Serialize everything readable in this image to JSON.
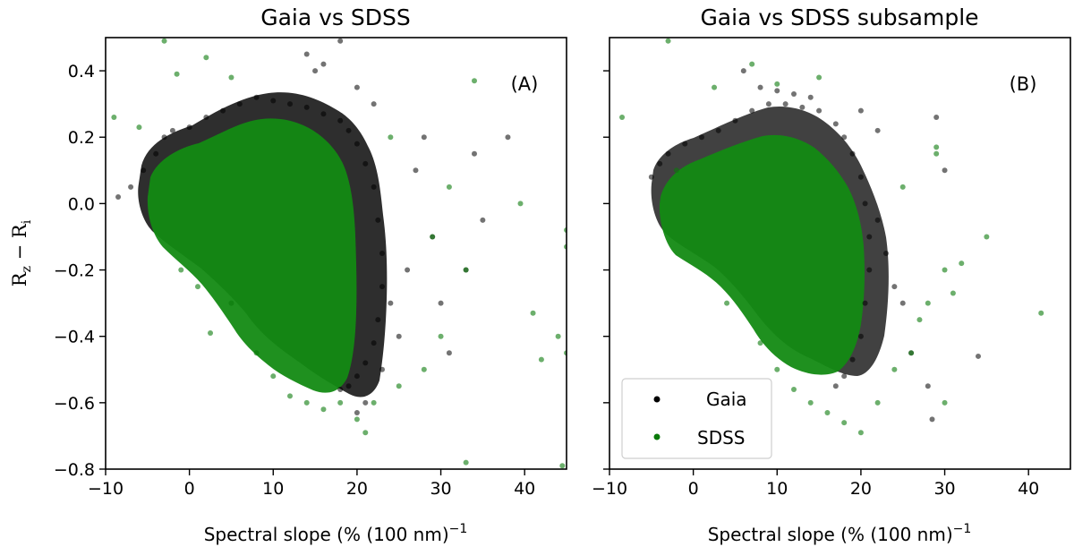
{
  "chart_data": [
    {
      "type": "scatter",
      "title": "Gaia vs SDSS",
      "panel_label": "(A)",
      "xlabel": "Spectral slope (% (100 nm)",
      "xlabel_sup": "−1",
      "xlabel_tail": "",
      "ylabel_main": "R",
      "ylabel_sub1": "z",
      "ylabel_mid": " − R",
      "ylabel_sub2": "i",
      "xlim": [
        -10,
        45
      ],
      "ylim": [
        -0.8,
        0.5
      ],
      "xticks": [
        -10,
        0,
        10,
        20,
        30,
        40
      ],
      "xtick_labels": [
        "−10",
        "0",
        "10",
        "20",
        "30",
        "40"
      ],
      "yticks": [
        -0.8,
        -0.6,
        -0.4,
        -0.2,
        0.0,
        0.2,
        0.4
      ],
      "ytick_labels": [
        "−0.8",
        "−0.6",
        "−0.4",
        "−0.2",
        "0.0",
        "0.2",
        "0.4"
      ],
      "series": [
        {
          "name": "Gaia",
          "color": "#000000",
          "points": [
            [
              -8.5,
              0.02
            ],
            [
              -7,
              0.05
            ],
            [
              -5.5,
              0.1
            ],
            [
              -4,
              0.15
            ],
            [
              -3,
              0.2
            ],
            [
              -2,
              0.22
            ],
            [
              0,
              0.23
            ],
            [
              2,
              0.26
            ],
            [
              4,
              0.28
            ],
            [
              6,
              0.3
            ],
            [
              8,
              0.32
            ],
            [
              10,
              0.31
            ],
            [
              12,
              0.3
            ],
            [
              14,
              0.29
            ],
            [
              16,
              0.27
            ],
            [
              18,
              0.25
            ],
            [
              19,
              0.22
            ],
            [
              20,
              0.18
            ],
            [
              21,
              0.12
            ],
            [
              22,
              0.05
            ],
            [
              22.5,
              -0.05
            ],
            [
              23,
              -0.15
            ],
            [
              23,
              -0.25
            ],
            [
              22.5,
              -0.35
            ],
            [
              22,
              -0.42
            ],
            [
              21,
              -0.48
            ],
            [
              20,
              -0.52
            ],
            [
              19,
              -0.55
            ],
            [
              18,
              -0.56
            ],
            [
              24,
              -0.3
            ],
            [
              25,
              -0.4
            ],
            [
              26,
              -0.2
            ],
            [
              27,
              0.1
            ],
            [
              28,
              0.2
            ],
            [
              29,
              -0.1
            ],
            [
              30,
              -0.3
            ],
            [
              31,
              -0.45
            ],
            [
              33,
              -0.2
            ],
            [
              34,
              0.15
            ],
            [
              35,
              -0.05
            ],
            [
              38,
              0.2
            ],
            [
              15,
              0.4
            ],
            [
              14,
              0.45
            ],
            [
              16,
              0.42
            ],
            [
              18,
              0.49
            ],
            [
              20,
              0.35
            ],
            [
              22,
              0.3
            ],
            [
              21,
              -0.6
            ],
            [
              20,
              -0.63
            ],
            [
              23,
              -0.5
            ]
          ]
        },
        {
          "name": "SDSS",
          "color": "#0a7a0a",
          "points": [
            [
              -9,
              0.26
            ],
            [
              -6,
              0.23
            ],
            [
              -3,
              0.49
            ],
            [
              -1.5,
              0.39
            ],
            [
              2,
              0.44
            ],
            [
              5,
              0.38
            ],
            [
              2.5,
              -0.39
            ],
            [
              1,
              -0.25
            ],
            [
              -1,
              -0.2
            ],
            [
              5,
              -0.3
            ],
            [
              8,
              -0.45
            ],
            [
              10,
              -0.52
            ],
            [
              12,
              -0.58
            ],
            [
              14,
              -0.6
            ],
            [
              16,
              -0.62
            ],
            [
              18,
              -0.6
            ],
            [
              20,
              -0.65
            ],
            [
              21,
              -0.69
            ],
            [
              22,
              -0.6
            ],
            [
              25,
              -0.55
            ],
            [
              28,
              -0.5
            ],
            [
              30,
              -0.4
            ],
            [
              33,
              -0.78
            ],
            [
              34,
              0.37
            ],
            [
              39.5,
              0.0
            ],
            [
              41,
              -0.33
            ],
            [
              42,
              -0.47
            ],
            [
              44,
              -0.4
            ],
            [
              45,
              -0.08
            ],
            [
              45,
              -0.13
            ],
            [
              44.5,
              -0.79
            ],
            [
              45,
              -0.45
            ],
            [
              33,
              -0.2
            ],
            [
              31,
              0.05
            ],
            [
              29,
              -0.1
            ],
            [
              24,
              0.2
            ]
          ]
        }
      ],
      "legend": null
    },
    {
      "type": "scatter",
      "title": "Gaia vs SDSS subsample",
      "panel_label": "(B)",
      "xlabel": "Spectral slope (% (100 nm)",
      "xlabel_sup": "−1",
      "xlim": [
        -10,
        45
      ],
      "ylim": [
        -0.8,
        0.5
      ],
      "xticks": [
        -10,
        0,
        10,
        20,
        30,
        40
      ],
      "xtick_labels": [
        "−10",
        "0",
        "10",
        "20",
        "30",
        "40"
      ],
      "series": [
        {
          "name": "Gaia",
          "color": "#000000",
          "points": [
            [
              -5,
              0.08
            ],
            [
              -4,
              0.12
            ],
            [
              -3,
              0.15
            ],
            [
              -1,
              0.18
            ],
            [
              1,
              0.2
            ],
            [
              3,
              0.22
            ],
            [
              5,
              0.25
            ],
            [
              7,
              0.28
            ],
            [
              9,
              0.3
            ],
            [
              11,
              0.3
            ],
            [
              13,
              0.29
            ],
            [
              15,
              0.28
            ],
            [
              17,
              0.24
            ],
            [
              18,
              0.2
            ],
            [
              19,
              0.15
            ],
            [
              20,
              0.08
            ],
            [
              20.5,
              0.0
            ],
            [
              21,
              -0.1
            ],
            [
              21,
              -0.2
            ],
            [
              20.5,
              -0.3
            ],
            [
              20,
              -0.4
            ],
            [
              19,
              -0.47
            ],
            [
              18,
              -0.52
            ],
            [
              17,
              -0.55
            ],
            [
              22,
              -0.05
            ],
            [
              23,
              -0.15
            ],
            [
              24,
              -0.25
            ],
            [
              25,
              -0.3
            ],
            [
              26,
              -0.45
            ],
            [
              28,
              -0.55
            ],
            [
              28.5,
              -0.65
            ],
            [
              29,
              0.26
            ],
            [
              30,
              0.1
            ],
            [
              34,
              -0.46
            ],
            [
              12,
              0.33
            ],
            [
              10,
              0.34
            ],
            [
              14,
              0.32
            ],
            [
              6,
              0.4
            ],
            [
              8,
              0.35
            ],
            [
              20,
              0.28
            ],
            [
              22,
              0.22
            ]
          ]
        },
        {
          "name": "SDSS",
          "color": "#0a7a0a",
          "points": [
            [
              -8.5,
              0.26
            ],
            [
              -3,
              0.49
            ],
            [
              7,
              0.42
            ],
            [
              2.5,
              0.35
            ],
            [
              -2,
              0.1
            ],
            [
              4,
              -0.3
            ],
            [
              8,
              -0.42
            ],
            [
              10,
              -0.5
            ],
            [
              12,
              -0.56
            ],
            [
              14,
              -0.6
            ],
            [
              16,
              -0.63
            ],
            [
              18,
              -0.66
            ],
            [
              20,
              -0.69
            ],
            [
              22,
              -0.6
            ],
            [
              24,
              -0.5
            ],
            [
              26,
              -0.45
            ],
            [
              28,
              -0.3
            ],
            [
              30,
              -0.2
            ],
            [
              31,
              -0.27
            ],
            [
              32,
              -0.18
            ],
            [
              35,
              -0.1
            ],
            [
              29,
              0.17
            ],
            [
              29,
              0.15
            ],
            [
              30,
              -0.6
            ],
            [
              41.5,
              -0.33
            ],
            [
              25,
              0.05
            ],
            [
              27,
              -0.35
            ],
            [
              15,
              0.38
            ],
            [
              10,
              0.36
            ]
          ]
        }
      ],
      "legend": {
        "placement": "lower-left",
        "entries": [
          {
            "label": "Gaia",
            "color": "#000000"
          },
          {
            "label": "SDSS",
            "color": "#0a7a0a"
          }
        ]
      }
    }
  ]
}
